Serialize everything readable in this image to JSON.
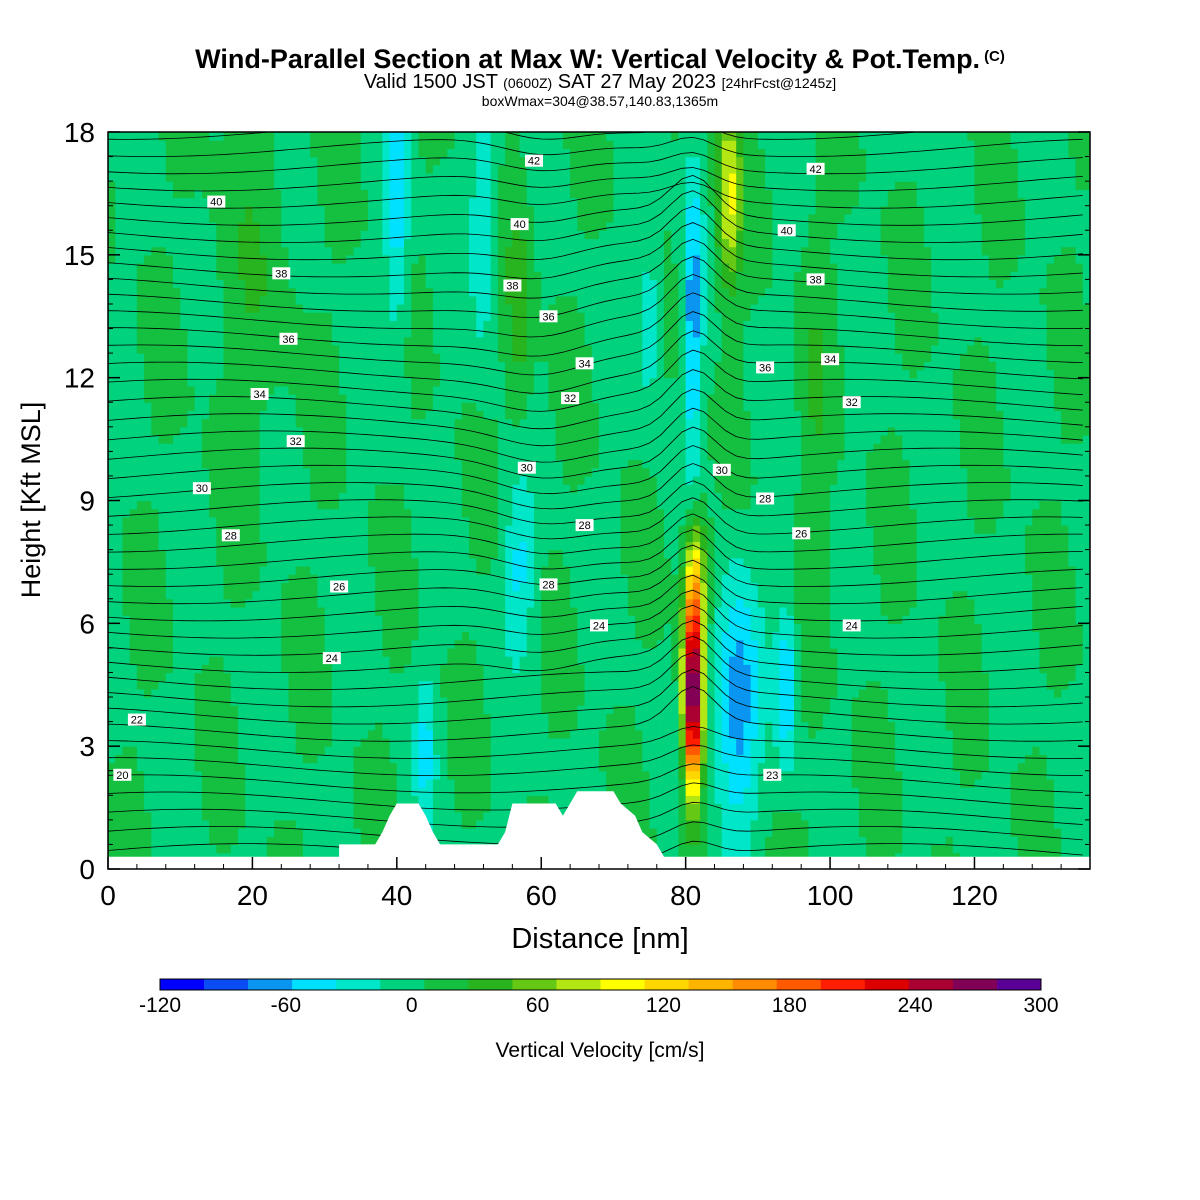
{
  "title": {
    "main": "Wind-Parallel Section at Max W: Vertical Velocity & Pot.Temp.",
    "copyright": "(C)",
    "valid_prefix": "Valid 1500 JST",
    "valid_utc": "(0600Z)",
    "valid_date": "SAT 27 May 2023",
    "forecast": "[24hrFcst@1245z]",
    "box_info": "boxWmax=304@38.57,140.83,1365m"
  },
  "colorbar": {
    "label": "Vertical Velocity [cm/s]",
    "min": -120,
    "max": 300,
    "ticks": [
      "-120",
      "-60",
      "0",
      "60",
      "120",
      "180",
      "240",
      "300"
    ],
    "colors": [
      "#0000ff",
      "#0a4df5",
      "#0a96f0",
      "#00e1ff",
      "#00e6c8",
      "#00d27d",
      "#15c040",
      "#28b41e",
      "#64c814",
      "#b4e614",
      "#ffff00",
      "#ffd700",
      "#ffb400",
      "#ff8c00",
      "#ff5a00",
      "#ff1e00",
      "#dc0000",
      "#aa0032",
      "#820055",
      "#5a0096"
    ]
  },
  "chart_data": {
    "type": "heatmap",
    "xlabel": "Distance [nm]",
    "ylabel": "Height [Kft MSL]",
    "xlim": [
      0,
      136
    ],
    "ylim": [
      0,
      18
    ],
    "x_ticks": [
      "0",
      "20",
      "40",
      "60",
      "80",
      "100",
      "120"
    ],
    "y_ticks": [
      "0",
      "3",
      "6",
      "9",
      "12",
      "15",
      "18"
    ],
    "field": "vertical velocity (cm/s), shaded",
    "contours": "potential temperature, black lines",
    "max_updraft": {
      "x": 81,
      "y": 4.3,
      "value_cm_s": 300
    },
    "terrain": [
      [
        0,
        0.3
      ],
      [
        32,
        0.3
      ],
      [
        32,
        0.6
      ],
      [
        37,
        0.6
      ],
      [
        38,
        0.9
      ],
      [
        39,
        1.3
      ],
      [
        40,
        1.6
      ],
      [
        43,
        1.6
      ],
      [
        44,
        1.3
      ],
      [
        45,
        0.9
      ],
      [
        46,
        0.6
      ],
      [
        54,
        0.6
      ],
      [
        55,
        0.9
      ],
      [
        56,
        1.6
      ],
      [
        62,
        1.6
      ],
      [
        63,
        1.3
      ],
      [
        64,
        1.6
      ],
      [
        65,
        1.9
      ],
      [
        70,
        1.9
      ],
      [
        71,
        1.6
      ],
      [
        73,
        1.3
      ],
      [
        74,
        0.9
      ],
      [
        76,
        0.6
      ],
      [
        77,
        0.3
      ],
      [
        136,
        0.3
      ]
    ],
    "theta_labels": [
      {
        "text": "20",
        "x": 2,
        "y": 2.3
      },
      {
        "text": "22",
        "x": 4,
        "y": 3.65
      },
      {
        "text": "24",
        "x": 31,
        "y": 5.15
      },
      {
        "text": "26",
        "x": 32,
        "y": 6.9
      },
      {
        "text": "28",
        "x": 17,
        "y": 8.15
      },
      {
        "text": "30",
        "x": 13,
        "y": 9.3
      },
      {
        "text": "32",
        "x": 26,
        "y": 10.45
      },
      {
        "text": "34",
        "x": 21,
        "y": 11.6
      },
      {
        "text": "36",
        "x": 25,
        "y": 12.95
      },
      {
        "text": "38",
        "x": 24,
        "y": 14.55
      },
      {
        "text": "40",
        "x": 15,
        "y": 16.3
      },
      {
        "text": "42",
        "x": 59,
        "y": 17.3
      },
      {
        "text": "40",
        "x": 57,
        "y": 15.75
      },
      {
        "text": "38",
        "x": 56,
        "y": 14.25
      },
      {
        "text": "36",
        "x": 61,
        "y": 13.5
      },
      {
        "text": "34",
        "x": 66,
        "y": 12.35
      },
      {
        "text": "32",
        "x": 64,
        "y": 11.5
      },
      {
        "text": "30",
        "x": 58,
        "y": 9.8
      },
      {
        "text": "28",
        "x": 66,
        "y": 8.4
      },
      {
        "text": "28",
        "x": 61,
        "y": 6.95
      },
      {
        "text": "24",
        "x": 68,
        "y": 5.95
      },
      {
        "text": "42",
        "x": 98,
        "y": 17.1
      },
      {
        "text": "40",
        "x": 94,
        "y": 15.6
      },
      {
        "text": "38",
        "x": 98,
        "y": 14.4
      },
      {
        "text": "34",
        "x": 100,
        "y": 12.45
      },
      {
        "text": "36",
        "x": 91,
        "y": 12.25
      },
      {
        "text": "32",
        "x": 103,
        "y": 11.4
      },
      {
        "text": "30",
        "x": 85,
        "y": 9.75
      },
      {
        "text": "28",
        "x": 91,
        "y": 9.05
      },
      {
        "text": "26",
        "x": 96,
        "y": 8.2
      },
      {
        "text": "24",
        "x": 103,
        "y": 5.95
      },
      {
        "text": "23",
        "x": 92,
        "y": 2.3
      }
    ]
  }
}
